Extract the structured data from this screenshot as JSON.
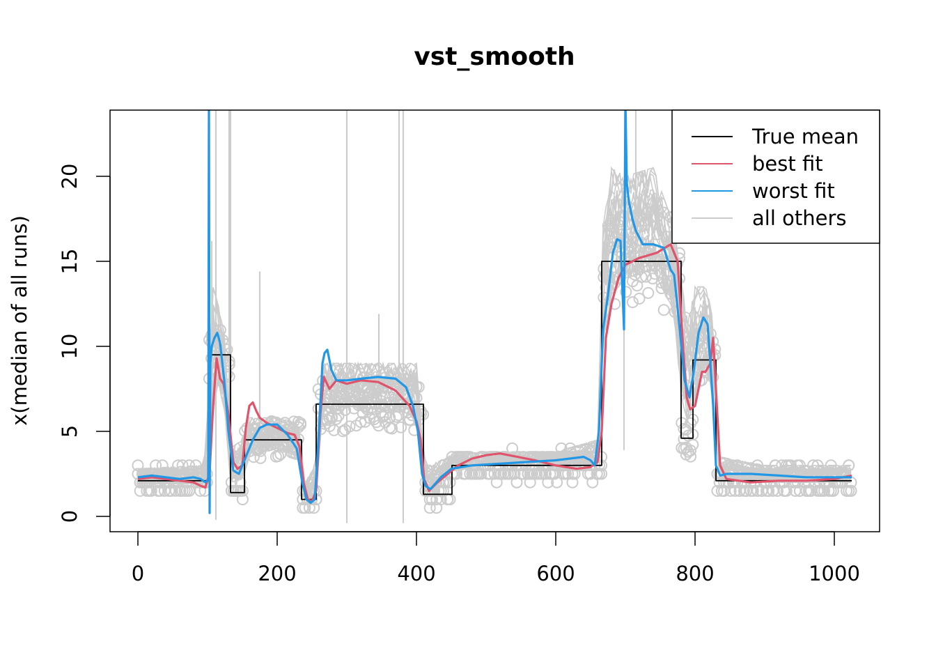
{
  "chart_data": {
    "type": "line",
    "title": "vst_smooth",
    "xlabel": "",
    "ylabel": "x(median of all runs)",
    "xlim": [
      -10,
      1065
    ],
    "ylim": [
      -0.9,
      23.9
    ],
    "xticks": [
      0,
      200,
      400,
      600,
      800,
      1000
    ],
    "xtick_labels": [
      "0",
      "200",
      "400",
      "600",
      "800",
      "1000"
    ],
    "yticks": [
      0,
      5,
      10,
      15,
      20
    ],
    "ytick_labels": [
      "0",
      "5",
      "10",
      "15",
      "20"
    ],
    "grid": false,
    "legend": {
      "position": "top-right",
      "entries": [
        {
          "label": "True mean",
          "color": "#000000"
        },
        {
          "label": "best fit",
          "color": "#DF536B"
        },
        {
          "label": "worst fit",
          "color": "#2297E6"
        },
        {
          "label": "all others",
          "color": "#CCCCCC"
        }
      ]
    },
    "colors": {
      "true_mean": "#000000",
      "best_fit": "#DF536B",
      "worst_fit": "#2297E6",
      "others": "#CCCCCC",
      "points": "#CCCCCC"
    },
    "series": [
      {
        "name": "True mean",
        "step": true,
        "x": [
          0,
          102,
          102,
          133,
          133,
          153,
          153,
          235,
          235,
          256,
          256,
          410,
          410,
          451,
          451,
          666,
          666,
          780,
          780,
          797,
          797,
          830,
          830,
          1025
        ],
        "y": [
          2.1,
          2.1,
          9.5,
          9.5,
          1.4,
          1.4,
          4.5,
          4.5,
          1.0,
          1.0,
          6.6,
          6.6,
          1.3,
          1.3,
          3.0,
          3.0,
          15.0,
          15.0,
          4.6,
          4.6,
          9.2,
          9.2,
          2.1,
          2.1
        ]
      },
      {
        "name": "best fit",
        "x": [
          0,
          20,
          40,
          60,
          80,
          90,
          97,
          103,
          108,
          113,
          118,
          123,
          130,
          137,
          143,
          150,
          155,
          160,
          165,
          170,
          175,
          185,
          200,
          215,
          225,
          232,
          238,
          244,
          250,
          256,
          262,
          267,
          275,
          285,
          300,
          320,
          345,
          370,
          390,
          400,
          406,
          411,
          418,
          430,
          445,
          460,
          480,
          500,
          520,
          545,
          570,
          600,
          630,
          650,
          660,
          666,
          672,
          680,
          690,
          700,
          720,
          745,
          765,
          775,
          782,
          788,
          793,
          800,
          810,
          815,
          822,
          826,
          830,
          836,
          845,
          880,
          920,
          960,
          1000,
          1025
        ],
        "y": [
          2.2,
          2.3,
          2.2,
          2.1,
          2.0,
          1.8,
          1.7,
          2.6,
          6.5,
          9.3,
          8.1,
          7.8,
          6.0,
          3.2,
          2.8,
          3.0,
          5.2,
          6.5,
          6.7,
          6.2,
          5.8,
          5.5,
          5.2,
          4.9,
          4.8,
          4.1,
          2.0,
          1.0,
          0.9,
          1.5,
          6.0,
          8.2,
          7.5,
          8.0,
          7.8,
          8.0,
          7.9,
          7.4,
          6.5,
          5.6,
          4.5,
          2.2,
          1.5,
          2.0,
          2.5,
          3.0,
          3.4,
          3.6,
          3.7,
          3.5,
          3.3,
          3.0,
          2.8,
          2.9,
          3.2,
          5.0,
          10.5,
          12.5,
          14.0,
          14.8,
          15.2,
          15.5,
          16.0,
          15.0,
          10.5,
          7.0,
          6.3,
          6.5,
          8.5,
          8.5,
          9.0,
          10.5,
          7.5,
          3.0,
          2.2,
          2.0,
          2.1,
          2.1,
          2.2,
          2.4
        ]
      },
      {
        "name": "worst fit",
        "x": [
          0,
          20,
          40,
          60,
          80,
          90,
          97,
          101,
          102,
          103,
          104,
          106,
          110,
          114,
          118,
          124,
          130,
          137,
          145,
          155,
          165,
          175,
          185,
          200,
          215,
          228,
          236,
          242,
          248,
          254,
          260,
          265,
          268,
          272,
          278,
          285,
          300,
          320,
          345,
          370,
          385,
          395,
          402,
          408,
          413,
          420,
          435,
          450,
          480,
          520,
          560,
          600,
          640,
          650,
          656,
          662,
          668,
          675,
          682,
          688,
          693,
          698,
          700,
          702,
          705,
          710,
          715,
          725,
          740,
          755,
          765,
          770,
          778,
          785,
          792,
          798,
          805,
          812,
          818,
          822,
          826,
          830,
          836,
          845,
          880,
          920,
          960,
          1000,
          1025
        ],
        "y": [
          2.3,
          2.4,
          2.3,
          2.2,
          2.3,
          2.2,
          2.0,
          2.2,
          24.5,
          0.2,
          9.0,
          10.0,
          10.5,
          10.8,
          10.2,
          8.0,
          5.0,
          2.7,
          2.5,
          3.5,
          4.5,
          5.2,
          5.4,
          5.4,
          4.8,
          4.0,
          2.0,
          1.0,
          0.8,
          1.0,
          5.0,
          9.0,
          9.6,
          9.8,
          8.6,
          8.0,
          8.0,
          8.1,
          8.2,
          8.1,
          7.6,
          6.5,
          5.0,
          2.5,
          1.8,
          1.6,
          2.3,
          2.8,
          3.0,
          3.1,
          3.2,
          3.3,
          3.5,
          3.3,
          3.0,
          5.0,
          11.0,
          13.0,
          15.5,
          16.3,
          16.2,
          11.0,
          24.5,
          19.6,
          18.5,
          17.5,
          16.8,
          16.0,
          16.0,
          15.8,
          14.5,
          14.2,
          11.0,
          8.0,
          7.0,
          8.5,
          10.8,
          11.7,
          11.3,
          9.0,
          6.5,
          3.0,
          2.4,
          2.5,
          2.5,
          2.4,
          2.3,
          2.3,
          2.3
        ]
      }
    ],
    "others_spikes": [
      {
        "x": 102,
        "y": 24.5
      },
      {
        "x": 106,
        "y": 16.2
      },
      {
        "x": 112,
        "y": 24.5
      },
      {
        "x": 131,
        "y": 24.5
      },
      {
        "x": 133,
        "y": 24.5
      },
      {
        "x": 175,
        "y": 14.4
      },
      {
        "x": 300,
        "y": 24.5
      },
      {
        "x": 375,
        "y": 24.5
      },
      {
        "x": 381,
        "y": 24.5
      },
      {
        "x": 346,
        "y": 11.9
      },
      {
        "x": 700,
        "y": 24.5
      },
      {
        "x": 715,
        "y": 24.5
      }
    ],
    "others_band": {
      "x": [
        0,
        95,
        100,
        108,
        115,
        125,
        133,
        150,
        160,
        200,
        230,
        240,
        255,
        265,
        300,
        400,
        410,
        420,
        450,
        500,
        600,
        660,
        668,
        680,
        700,
        740,
        770,
        780,
        790,
        800,
        815,
        825,
        835,
        900,
        1025
      ],
      "low": [
        1.9,
        1.9,
        2.5,
        6.0,
        8.0,
        6.0,
        2.0,
        2.2,
        3.5,
        4.0,
        3.5,
        1.0,
        1.0,
        6.0,
        6.5,
        6.0,
        1.5,
        1.4,
        2.7,
        3.0,
        2.9,
        3.0,
        10.0,
        13.0,
        14.0,
        14.5,
        12.0,
        7.0,
        5.5,
        7.0,
        9.0,
        7.0,
        2.2,
        2.0,
        2.0
      ],
      "high": [
        2.8,
        3.0,
        6.0,
        13.5,
        12.5,
        10.5,
        4.0,
        4.5,
        5.8,
        5.8,
        5.5,
        2.0,
        3.0,
        9.0,
        9.0,
        9.0,
        3.5,
        3.0,
        3.6,
        3.8,
        3.8,
        4.5,
        17.0,
        20.5,
        20.0,
        20.5,
        17.0,
        14.0,
        11.5,
        13.5,
        13.5,
        12.0,
        3.5,
        3.0,
        3.0
      ]
    },
    "points_note": "median-of-runs observations drawn as open grey circles around the true mean"
  }
}
